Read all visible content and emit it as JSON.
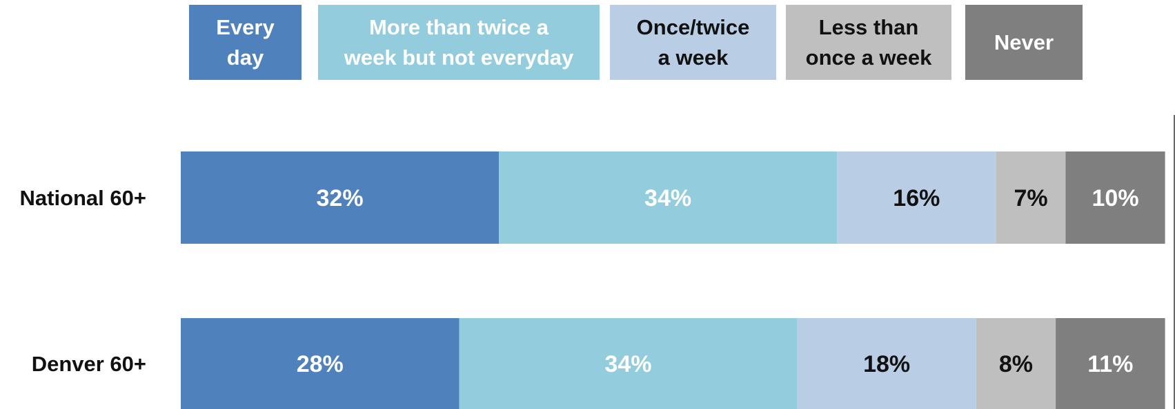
{
  "chart_data": {
    "type": "bar",
    "orientation": "horizontal",
    "stacked": true,
    "percent": true,
    "xlim": [
      0,
      100
    ],
    "categories": [
      "National 60+",
      "Denver 60+"
    ],
    "series": [
      {
        "name": "Every day",
        "values": [
          32,
          28
        ],
        "color": "#4F81BD",
        "label_color": "#ffffff"
      },
      {
        "name": "More than twice a week but not everyday",
        "values": [
          34,
          34
        ],
        "color": "#93CDDD",
        "label_color": "#ffffff"
      },
      {
        "name": "Once/twice a week",
        "values": [
          16,
          18
        ],
        "color": "#B9CDE5",
        "label_color": "#111111"
      },
      {
        "name": "Less than once a week",
        "values": [
          7,
          8
        ],
        "color": "#BFBFBF",
        "label_color": "#111111"
      },
      {
        "name": "Never",
        "values": [
          10,
          11
        ],
        "color": "#7F7F7F",
        "label_color": "#ffffff"
      }
    ],
    "value_labels": [
      [
        "32%",
        "28%"
      ],
      [
        "34%",
        "34%"
      ],
      [
        "16%",
        "18%"
      ],
      [
        "7%",
        "8%"
      ],
      [
        "10%",
        "11%"
      ]
    ],
    "legend": {
      "placement": "top",
      "entries": [
        [
          "Every",
          "day"
        ],
        [
          "More than twice a",
          "week but not everyday"
        ],
        [
          "Once/twice",
          "a week"
        ],
        [
          "Less than",
          "once a week"
        ],
        [
          "Never"
        ]
      ]
    }
  }
}
